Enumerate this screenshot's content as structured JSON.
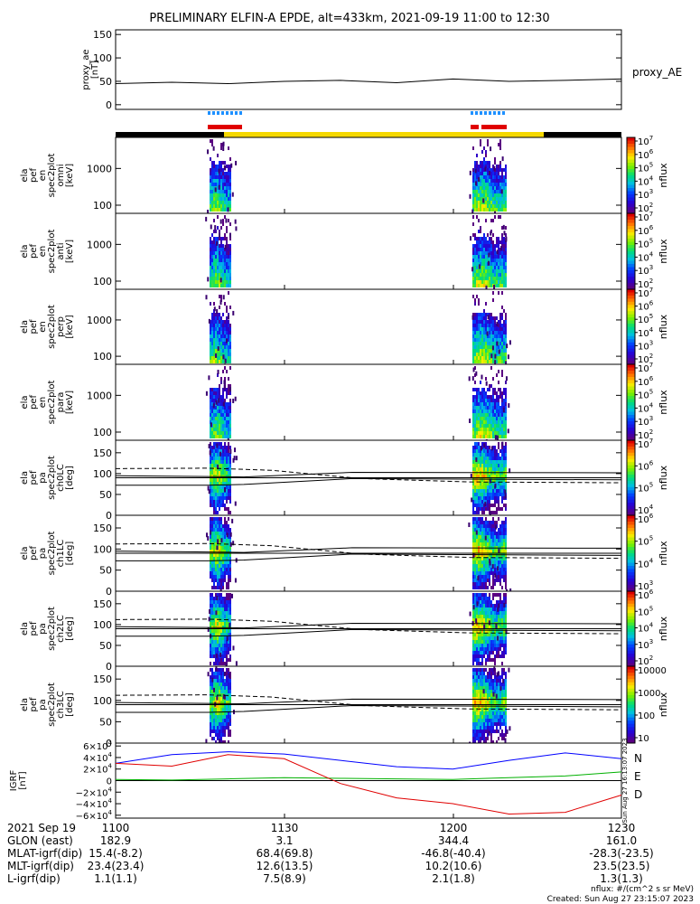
{
  "title": "PRELIMINARY ELFIN-A EPDE, alt=433km, 2021-09-19 11:00 to 12:30",
  "colors": {
    "bar_black": "#000000",
    "bar_yellow": "#f5d800",
    "flag_blue": "#1e90ff",
    "flag_red": "#e00000",
    "N": "#0000ff",
    "E": "#00b000",
    "D": "#e00000"
  },
  "chart_data": [
    {
      "type": "line",
      "panel": "proxy_ae",
      "ylabel": [
        "proxy_ae",
        "[nT]"
      ],
      "legend": "proxy_AE",
      "yticks": [
        "150",
        "100",
        "50",
        "0"
      ],
      "ylim": [
        -10,
        160
      ],
      "x_minutes": [
        0,
        10,
        20,
        30,
        40,
        50,
        60,
        70,
        80,
        90
      ],
      "values": [
        45,
        48,
        45,
        50,
        52,
        47,
        55,
        50,
        52,
        55
      ]
    },
    {
      "type": "heatmap",
      "panel": "ela_pef_en_spec2plot_omni",
      "ylabel": [
        "ela",
        "pef",
        "en",
        "spec2plot",
        "omni",
        "[keV]"
      ],
      "yticks": [
        "1000",
        "100"
      ],
      "ylim": [
        60,
        7000
      ],
      "scale": "log",
      "colorbar": {
        "label": "nflux",
        "ticks": [
          "10^7",
          "10^6",
          "10^5",
          "10^4",
          "10^3",
          "10^2"
        ]
      }
    },
    {
      "type": "heatmap",
      "panel": "ela_pef_en_spec2plot_anti",
      "ylabel": [
        "ela",
        "pef",
        "en",
        "spec2plot",
        "anti",
        "[keV]"
      ],
      "yticks": [
        "1000",
        "100"
      ],
      "ylim": [
        60,
        7000
      ],
      "scale": "log",
      "colorbar": {
        "label": "nflux",
        "ticks": [
          "10^7",
          "10^6",
          "10^5",
          "10^4",
          "10^3",
          "10^2"
        ]
      }
    },
    {
      "type": "heatmap",
      "panel": "ela_pef_en_spec2plot_perp",
      "ylabel": [
        "ela",
        "pef",
        "en",
        "spec2plot",
        "perp",
        "[keV]"
      ],
      "yticks": [
        "1000",
        "100"
      ],
      "ylim": [
        60,
        7000
      ],
      "scale": "log",
      "colorbar": {
        "label": "nflux",
        "ticks": [
          "10^7",
          "10^6",
          "10^5",
          "10^4",
          "10^3",
          "10^2"
        ]
      }
    },
    {
      "type": "heatmap",
      "panel": "ela_pef_en_spec2plot_para",
      "ylabel": [
        "ela",
        "pef",
        "en",
        "spec2plot",
        "para",
        "[keV]"
      ],
      "yticks": [
        "1000",
        "100"
      ],
      "ylim": [
        60,
        7000
      ],
      "scale": "log",
      "colorbar": {
        "label": "nflux",
        "ticks": [
          "10^7",
          "10^6",
          "10^5",
          "10^4",
          "10^3",
          "10^2"
        ]
      }
    },
    {
      "type": "heatmap",
      "panel": "ela_pef_pa_spec2plot_ch0LC",
      "ylabel": [
        "ela",
        "pef",
        "pa",
        "spec2plot",
        "ch0LC",
        "[deg]"
      ],
      "yticks": [
        "150",
        "100",
        "50",
        "0"
      ],
      "ylim": [
        0,
        180
      ],
      "colorbar": {
        "label": "nflux",
        "ticks": [
          "10^7",
          "10^6",
          "10^5",
          "10^4"
        ]
      }
    },
    {
      "type": "heatmap",
      "panel": "ela_pef_pa_spec2plot_ch1LC",
      "ylabel": [
        "ela",
        "pef",
        "pa",
        "spec2plot",
        "ch1LC",
        "[deg]"
      ],
      "yticks": [
        "150",
        "100",
        "50",
        "0"
      ],
      "ylim": [
        0,
        180
      ],
      "colorbar": {
        "label": "nflux",
        "ticks": [
          "10^6",
          "10^5",
          "10^4",
          "10^3"
        ]
      }
    },
    {
      "type": "heatmap",
      "panel": "ela_pef_pa_spec2plot_ch2LC",
      "ylabel": [
        "ela",
        "pef",
        "pa",
        "spec2plot",
        "ch2LC",
        "[deg]"
      ],
      "yticks": [
        "150",
        "100",
        "50",
        "0"
      ],
      "ylim": [
        0,
        180
      ],
      "colorbar": {
        "label": "nflux",
        "ticks": [
          "10^6",
          "10^5",
          "10^4",
          "10^3",
          "10^2"
        ]
      }
    },
    {
      "type": "heatmap",
      "panel": "ela_pef_pa_spec2plot_ch3LC",
      "ylabel": [
        "ela",
        "pef",
        "pa",
        "spec2plot",
        "ch3LC",
        "[deg]"
      ],
      "yticks": [
        "150",
        "100",
        "50",
        "0"
      ],
      "ylim": [
        0,
        180
      ],
      "colorbar": {
        "label": "nflux",
        "ticks": [
          "10000",
          "1000",
          "100",
          "10"
        ]
      }
    },
    {
      "type": "line",
      "panel": "IGRF",
      "ylabel": [
        "IGRF",
        "[nT]"
      ],
      "yticks": [
        "6×10^4",
        "4×10^4",
        "2×10^4",
        "0",
        "−2×10^4",
        "−4×10^4",
        "−6×10^4"
      ],
      "ylim": [
        -65000,
        65000
      ],
      "side_label": "Sun Aug 27 16:13:07 2023",
      "x_minutes": [
        0,
        10,
        20,
        30,
        40,
        50,
        60,
        70,
        80,
        90
      ],
      "series": [
        {
          "name": "N",
          "values": [
            30000,
            45000,
            50000,
            46000,
            35000,
            24000,
            20000,
            35000,
            48000,
            38000
          ]
        },
        {
          "name": "E",
          "values": [
            2000,
            1000,
            3000,
            5000,
            4000,
            3000,
            2000,
            5000,
            8000,
            15000
          ]
        },
        {
          "name": "D",
          "values": [
            30000,
            25000,
            45000,
            38000,
            -5000,
            -30000,
            -40000,
            -58000,
            -55000,
            -25000
          ]
        }
      ]
    }
  ],
  "x_axis": {
    "ticks": [
      "1100",
      "1130",
      "1200",
      "1230"
    ],
    "date_label": "2021 Sep 19"
  },
  "ephemeris": [
    {
      "label": "GLON (east)",
      "values": [
        "182.9",
        "3.1",
        "344.4",
        "161.0"
      ]
    },
    {
      "label": "MLAT-igrf(dip)",
      "values": [
        "15.4(-8.2)",
        "68.4(69.8)",
        "-46.8(-40.4)",
        "-28.3(-23.5)"
      ]
    },
    {
      "label": "MLT-igrf(dip)",
      "values": [
        "23.4(23.4)",
        "12.6(13.5)",
        "10.2(10.6)",
        "23.5(23.5)"
      ]
    },
    {
      "label": "L-igrf(dip)",
      "values": [
        "1.1(1.1)",
        "7.5(8.9)",
        "2.1(1.8)",
        "1.3(1.3)"
      ]
    }
  ],
  "footer": {
    "units": "nflux: #/(cm^2 s sr MeV)",
    "created": "Created: Sun Aug 27 23:15:07 2023"
  }
}
